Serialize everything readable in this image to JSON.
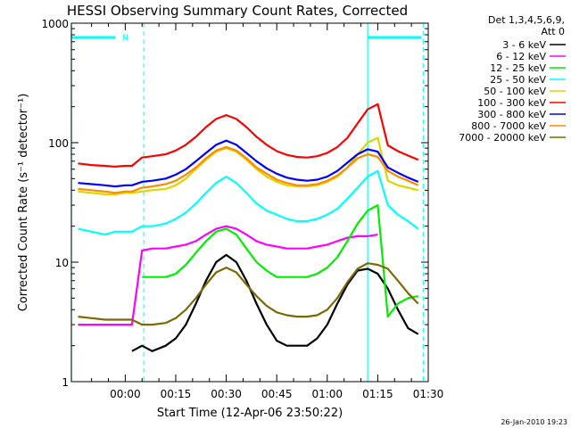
{
  "chart_data": {
    "type": "line",
    "title": "HESSI Observing Summary Count Rates, Corrected",
    "xlabel": "Start Time (12-Apr-06 23:50:22)",
    "ylabel": "Corrected Count Rate (s⁻¹ detector⁻¹)",
    "timestamp": "26-Jan-2010 19:23",
    "y_scale": "log",
    "ylim": [
      1,
      1000
    ],
    "xlim_minutes_after_midnight": [
      -16,
      90
    ],
    "x_tick_labels": [
      "00:00",
      "00:15",
      "00:30",
      "00:45",
      "01:00",
      "01:15",
      "01:30"
    ],
    "x_tick_minutes": [
      0,
      15,
      30,
      45,
      60,
      75,
      90
    ],
    "y_tick_labels": [
      "1",
      "10",
      "100",
      "1000"
    ],
    "y_tick_values": [
      1,
      10,
      100,
      1000
    ],
    "grid": false,
    "legend": {
      "placement": "right-outside",
      "header": [
        "Det 1,3,4,5,6,9,",
        "Att 0"
      ],
      "entries": [
        {
          "label": "3 - 6 keV",
          "color": "#000000"
        },
        {
          "label": "6 - 12 keV",
          "color": "#ff00ff"
        },
        {
          "label": "12 - 25 keV",
          "color": "#00ee00"
        },
        {
          "label": "25 - 50 keV",
          "color": "#00ffff"
        },
        {
          "label": "50 - 100 keV",
          "color": "#d8d800"
        },
        {
          "label": "100 - 300 keV",
          "color": "#ff0000"
        },
        {
          "label": "300 - 800 keV",
          "color": "#0000ff"
        },
        {
          "label": "800 - 7000 keV",
          "color": "#ff8c00"
        },
        {
          "label": "7000 - 20000 keV",
          "color": "#7a6a00"
        }
      ]
    },
    "bars": {
      "flags": [
        {
          "start": -16,
          "end": -3,
          "label": "N"
        },
        {
          "start": 72,
          "end": 88,
          "label": ""
        }
      ],
      "night_boundaries_solid": [
        -16,
        72
      ],
      "night_boundaries_dashed": [
        5.5,
        88.5
      ],
      "color": "#00ffff"
    },
    "series": [
      {
        "name": "3 - 6 keV",
        "color": "#000000",
        "x": [
          2,
          5,
          8,
          12,
          15,
          18,
          21,
          24,
          27,
          30,
          33,
          36,
          39,
          42,
          45,
          48,
          51,
          54,
          57,
          60,
          63,
          66,
          69,
          72,
          75,
          78,
          81,
          84,
          87
        ],
        "y": [
          1.8,
          2.0,
          1.8,
          2.0,
          2.3,
          3.0,
          4.5,
          7.0,
          10,
          11.5,
          10,
          7.0,
          4.5,
          3.0,
          2.2,
          2.0,
          2.0,
          2.0,
          2.3,
          3.0,
          4.5,
          6.5,
          8.5,
          8.8,
          8.0,
          6.0,
          4.0,
          2.8,
          2.5
        ]
      },
      {
        "name": "6 - 12 keV",
        "color": "#ff00ff",
        "x": [
          -14,
          -10,
          -6,
          -3,
          0,
          2,
          5,
          8,
          12,
          15,
          18,
          21,
          24,
          27,
          30,
          33,
          36,
          39,
          42,
          45,
          48,
          51,
          54,
          57,
          60,
          63,
          66,
          69,
          72,
          75
        ],
        "y": [
          3.0,
          3.0,
          3.0,
          3.0,
          3.0,
          3.0,
          12.5,
          13,
          13,
          13.5,
          14,
          15,
          17,
          19,
          20,
          19,
          17,
          15,
          14,
          13.5,
          13,
          13,
          13,
          13.5,
          14,
          15,
          16,
          16.5,
          16.5,
          17
        ]
      },
      {
        "name": "12 - 25 keV",
        "color": "#00ee00",
        "x": [
          5,
          8,
          12,
          15,
          18,
          21,
          24,
          27,
          30,
          33,
          36,
          39,
          42,
          45,
          48,
          51,
          54,
          57,
          60,
          63,
          66,
          69,
          72,
          75,
          78,
          81,
          84,
          87
        ],
        "y": [
          7.5,
          7.5,
          7.5,
          8.0,
          9.5,
          12,
          15,
          18,
          19,
          17,
          13,
          10,
          8.5,
          7.5,
          7.5,
          7.5,
          7.5,
          8.0,
          9.0,
          11,
          15,
          21,
          27,
          30,
          3.5,
          4.5,
          5.0,
          5.2
        ]
      },
      {
        "name": "25 - 50 keV",
        "color": "#00ffff",
        "x": [
          -14,
          -10,
          -6,
          -3,
          0,
          2,
          5,
          8,
          12,
          15,
          18,
          21,
          24,
          27,
          30,
          33,
          36,
          39,
          42,
          45,
          48,
          51,
          54,
          57,
          60,
          63,
          66,
          69,
          72,
          75,
          78,
          81,
          84,
          87
        ],
        "y": [
          19,
          18,
          17,
          18,
          18,
          18,
          20,
          20,
          21,
          23,
          26,
          31,
          38,
          46,
          52,
          46,
          38,
          31,
          27,
          25,
          23,
          22,
          22,
          23,
          25,
          28,
          34,
          42,
          52,
          58,
          30,
          25,
          22,
          19
        ]
      },
      {
        "name": "50 - 100 keV",
        "color": "#d8d800",
        "x": [
          -14,
          -10,
          -6,
          -3,
          0,
          2,
          5,
          8,
          12,
          15,
          18,
          21,
          24,
          27,
          30,
          33,
          36,
          39,
          42,
          45,
          48,
          51,
          54,
          57,
          60,
          63,
          66,
          69,
          72,
          75,
          78,
          81,
          84,
          87
        ],
        "y": [
          39,
          38,
          37,
          37,
          38,
          38,
          39,
          40,
          41,
          44,
          50,
          60,
          72,
          84,
          90,
          84,
          72,
          60,
          52,
          47,
          44,
          43,
          43,
          44,
          47,
          52,
          62,
          80,
          100,
          110,
          48,
          44,
          42,
          40
        ]
      },
      {
        "name": "100 - 300 keV",
        "color": "#ff0000",
        "x": [
          -14,
          -10,
          -6,
          -3,
          0,
          2,
          5,
          8,
          12,
          15,
          18,
          21,
          24,
          27,
          30,
          33,
          36,
          39,
          42,
          45,
          48,
          51,
          54,
          57,
          60,
          63,
          66,
          69,
          72,
          75,
          78,
          81,
          84,
          87
        ],
        "y": [
          67,
          65,
          64,
          63,
          64,
          64,
          75,
          77,
          80,
          86,
          96,
          112,
          135,
          158,
          170,
          158,
          135,
          112,
          96,
          85,
          79,
          76,
          75,
          77,
          82,
          92,
          110,
          145,
          190,
          210,
          95,
          85,
          78,
          72
        ]
      },
      {
        "name": "300 - 800 keV",
        "color": "#0000ff",
        "x": [
          -14,
          -10,
          -6,
          -3,
          0,
          2,
          5,
          8,
          12,
          15,
          18,
          21,
          24,
          27,
          30,
          33,
          36,
          39,
          42,
          45,
          48,
          51,
          54,
          57,
          60,
          63,
          66,
          69,
          72,
          75,
          78,
          81,
          84,
          87
        ],
        "y": [
          46,
          45,
          44,
          43,
          44,
          44,
          47,
          48,
          50,
          54,
          60,
          70,
          82,
          96,
          104,
          96,
          82,
          70,
          61,
          55,
          51,
          49,
          48,
          49,
          52,
          58,
          68,
          80,
          88,
          84,
          62,
          56,
          51,
          47
        ]
      },
      {
        "name": "800 - 7000 keV",
        "color": "#ff8c00",
        "x": [
          -14,
          -10,
          -6,
          -3,
          0,
          2,
          5,
          8,
          12,
          15,
          18,
          21,
          24,
          27,
          30,
          33,
          36,
          39,
          42,
          45,
          48,
          51,
          54,
          57,
          60,
          63,
          66,
          69,
          72,
          75,
          78,
          81,
          84,
          87
        ],
        "y": [
          41,
          40,
          39,
          38,
          39,
          39,
          42,
          43,
          45,
          48,
          54,
          62,
          74,
          86,
          92,
          86,
          74,
          62,
          55,
          49,
          46,
          44,
          44,
          45,
          48,
          53,
          62,
          74,
          80,
          76,
          58,
          52,
          48,
          44
        ]
      },
      {
        "name": "7000 - 20000 keV",
        "color": "#7a6a00",
        "x": [
          -14,
          -10,
          -6,
          -3,
          0,
          2,
          5,
          8,
          12,
          15,
          18,
          21,
          24,
          27,
          30,
          33,
          36,
          39,
          42,
          45,
          48,
          51,
          54,
          57,
          60,
          63,
          66,
          69,
          72,
          75,
          78,
          81,
          84,
          87
        ],
        "y": [
          3.5,
          3.4,
          3.3,
          3.3,
          3.3,
          3.3,
          3.0,
          3.0,
          3.1,
          3.4,
          4.0,
          5.0,
          6.5,
          8.2,
          9.0,
          8.2,
          6.5,
          5.2,
          4.3,
          3.8,
          3.6,
          3.5,
          3.5,
          3.6,
          4.0,
          5.0,
          6.8,
          8.8,
          9.8,
          9.5,
          8.8,
          7.0,
          5.5,
          4.5
        ]
      }
    ]
  }
}
